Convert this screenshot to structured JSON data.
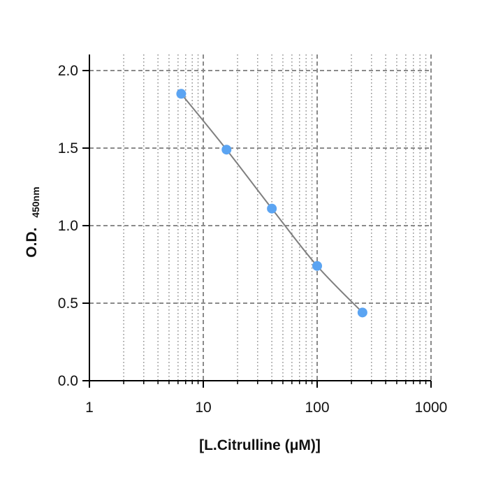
{
  "chart_data": {
    "type": "scatter",
    "x_scale": "log",
    "xlim": [
      1,
      1000
    ],
    "ylim": [
      0,
      2.1
    ],
    "x_ticks": [
      1,
      10,
      100,
      1000
    ],
    "x_tick_labels": [
      "1",
      "10",
      "100",
      "1000"
    ],
    "y_ticks": [
      0,
      0.5,
      1.0,
      1.5,
      2.0
    ],
    "y_tick_labels": [
      "0.0",
      "0.5",
      "1.0",
      "1.5",
      "2.0"
    ],
    "xlabel": "[L.Citrulline (μM)]",
    "ylabel_main": "O.D.",
    "ylabel_sub": "450nm",
    "grid": true,
    "series": [
      {
        "x": [
          6.4,
          16,
          40,
          100,
          250
        ],
        "y": [
          1.85,
          1.49,
          1.11,
          0.74,
          0.44
        ],
        "color": "#5ba4f2",
        "line_color": "#7f7f7f"
      }
    ]
  }
}
